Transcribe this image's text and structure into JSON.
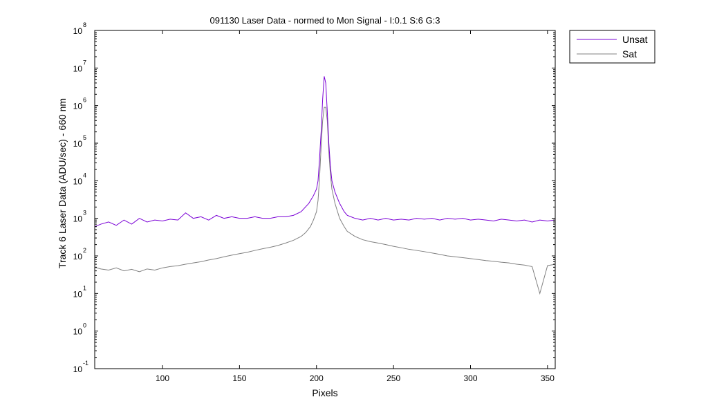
{
  "chart_data": {
    "type": "line",
    "title": "091130 Laser Data - normed to Mon Signal -   I:0.1  S:6  G:3",
    "xlabel": "Pixels",
    "ylabel": "Track 6 Laser Data (ADU/sec) - 660 nm",
    "x_range": [
      56,
      355
    ],
    "y_scale": "log",
    "y_range": [
      0.1,
      100000000
    ],
    "x_ticks": [
      {
        "value": 100,
        "label": "100"
      },
      {
        "value": 150,
        "label": "150"
      },
      {
        "value": 200,
        "label": "200"
      },
      {
        "value": 250,
        "label": "250"
      },
      {
        "value": 300,
        "label": "300"
      },
      {
        "value": 350,
        "label": "350"
      }
    ],
    "y_ticks": [
      {
        "exp": -1,
        "base": "10",
        "sup": "-1"
      },
      {
        "exp": 0,
        "base": "10",
        "sup": "0"
      },
      {
        "exp": 1,
        "base": "10",
        "sup": "1"
      },
      {
        "exp": 2,
        "base": "10",
        "sup": "2"
      },
      {
        "exp": 3,
        "base": "10",
        "sup": "3"
      },
      {
        "exp": 4,
        "base": "10",
        "sup": "4"
      },
      {
        "exp": 5,
        "base": "10",
        "sup": "5"
      },
      {
        "exp": 6,
        "base": "10",
        "sup": "6"
      },
      {
        "exp": 7,
        "base": "10",
        "sup": "7"
      },
      {
        "exp": 8,
        "base": "10",
        "sup": "8"
      }
    ],
    "grid": false,
    "legend_position": "outside-top-right",
    "series": [
      {
        "name": "Unsat",
        "color": "#7a00d6",
        "points": [
          [
            56,
            600
          ],
          [
            60,
            700
          ],
          [
            65,
            800
          ],
          [
            70,
            650
          ],
          [
            75,
            900
          ],
          [
            80,
            700
          ],
          [
            85,
            1000
          ],
          [
            90,
            800
          ],
          [
            95,
            900
          ],
          [
            100,
            850
          ],
          [
            105,
            950
          ],
          [
            110,
            900
          ],
          [
            115,
            1400
          ],
          [
            120,
            1000
          ],
          [
            125,
            1100
          ],
          [
            130,
            900
          ],
          [
            135,
            1200
          ],
          [
            140,
            1000
          ],
          [
            145,
            1100
          ],
          [
            150,
            1000
          ],
          [
            155,
            1000
          ],
          [
            160,
            1100
          ],
          [
            165,
            1000
          ],
          [
            170,
            1000
          ],
          [
            175,
            1100
          ],
          [
            180,
            1100
          ],
          [
            185,
            1200
          ],
          [
            190,
            1500
          ],
          [
            195,
            2500
          ],
          [
            198,
            4000
          ],
          [
            200,
            6000
          ],
          [
            201,
            10000
          ],
          [
            202,
            40000
          ],
          [
            203,
            200000
          ],
          [
            204,
            1500000
          ],
          [
            205,
            6000000
          ],
          [
            206,
            4000000
          ],
          [
            207,
            700000
          ],
          [
            208,
            100000
          ],
          [
            209,
            25000
          ],
          [
            210,
            10000
          ],
          [
            212,
            5000
          ],
          [
            215,
            2500
          ],
          [
            218,
            1500
          ],
          [
            220,
            1200
          ],
          [
            225,
            1000
          ],
          [
            230,
            900
          ],
          [
            235,
            1000
          ],
          [
            240,
            900
          ],
          [
            245,
            1000
          ],
          [
            250,
            900
          ],
          [
            255,
            950
          ],
          [
            260,
            900
          ],
          [
            265,
            1000
          ],
          [
            270,
            950
          ],
          [
            275,
            1000
          ],
          [
            280,
            900
          ],
          [
            285,
            1000
          ],
          [
            290,
            950
          ],
          [
            295,
            1000
          ],
          [
            300,
            900
          ],
          [
            305,
            950
          ],
          [
            310,
            900
          ],
          [
            315,
            850
          ],
          [
            320,
            950
          ],
          [
            325,
            900
          ],
          [
            330,
            850
          ],
          [
            335,
            900
          ],
          [
            340,
            800
          ],
          [
            345,
            900
          ],
          [
            350,
            850
          ],
          [
            355,
            900
          ]
        ]
      },
      {
        "name": "Sat",
        "color": "#808080",
        "points": [
          [
            56,
            50
          ],
          [
            60,
            45
          ],
          [
            65,
            42
          ],
          [
            70,
            48
          ],
          [
            75,
            40
          ],
          [
            80,
            44
          ],
          [
            85,
            38
          ],
          [
            90,
            45
          ],
          [
            95,
            42
          ],
          [
            100,
            48
          ],
          [
            105,
            52
          ],
          [
            110,
            55
          ],
          [
            115,
            60
          ],
          [
            120,
            65
          ],
          [
            125,
            70
          ],
          [
            130,
            78
          ],
          [
            135,
            85
          ],
          [
            140,
            95
          ],
          [
            145,
            105
          ],
          [
            150,
            115
          ],
          [
            155,
            125
          ],
          [
            160,
            140
          ],
          [
            165,
            155
          ],
          [
            170,
            170
          ],
          [
            175,
            190
          ],
          [
            180,
            220
          ],
          [
            185,
            260
          ],
          [
            190,
            330
          ],
          [
            193,
            420
          ],
          [
            196,
            600
          ],
          [
            198,
            900
          ],
          [
            200,
            1500
          ],
          [
            201,
            3000
          ],
          [
            202,
            12000
          ],
          [
            203,
            80000
          ],
          [
            204,
            400000
          ],
          [
            205,
            900000
          ],
          [
            206,
            900000
          ],
          [
            207,
            400000
          ],
          [
            208,
            60000
          ],
          [
            209,
            15000
          ],
          [
            210,
            6000
          ],
          [
            212,
            2500
          ],
          [
            215,
            1000
          ],
          [
            218,
            600
          ],
          [
            220,
            450
          ],
          [
            225,
            330
          ],
          [
            230,
            270
          ],
          [
            235,
            240
          ],
          [
            240,
            220
          ],
          [
            245,
            200
          ],
          [
            250,
            180
          ],
          [
            255,
            165
          ],
          [
            260,
            150
          ],
          [
            265,
            140
          ],
          [
            270,
            130
          ],
          [
            275,
            120
          ],
          [
            280,
            110
          ],
          [
            285,
            100
          ],
          [
            290,
            95
          ],
          [
            295,
            90
          ],
          [
            300,
            85
          ],
          [
            305,
            80
          ],
          [
            310,
            75
          ],
          [
            315,
            72
          ],
          [
            320,
            68
          ],
          [
            325,
            65
          ],
          [
            330,
            60
          ],
          [
            335,
            57
          ],
          [
            340,
            52
          ],
          [
            345,
            10
          ],
          [
            350,
            55
          ],
          [
            355,
            60
          ]
        ]
      }
    ]
  }
}
